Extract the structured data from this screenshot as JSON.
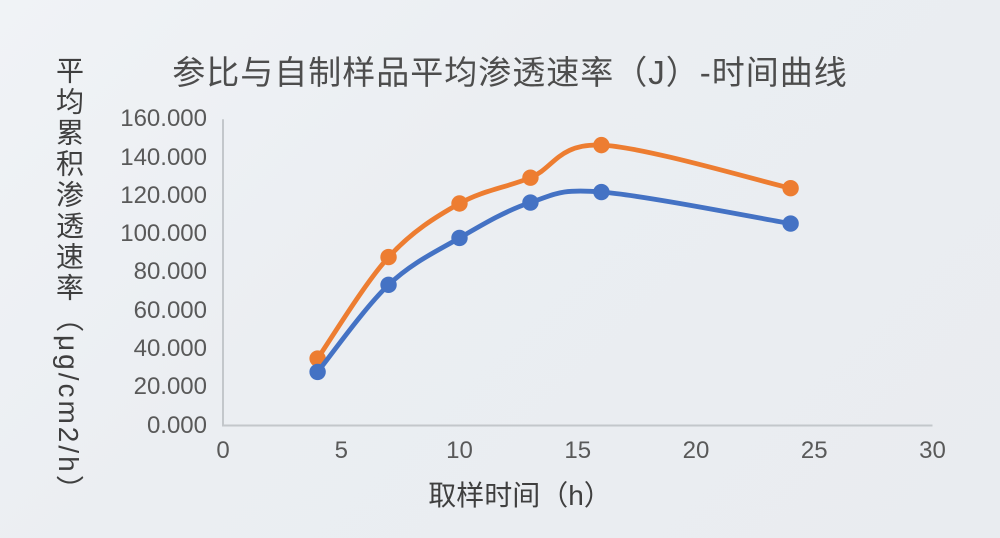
{
  "chart_data": {
    "type": "line",
    "title": "参比与自制样品平均渗透速率（J）-时间曲线",
    "xlabel": "取样时间（h）",
    "ylabel": "平均累积渗透速率（μg/cm2/h）",
    "x": [
      4,
      7,
      10,
      13,
      16,
      24
    ],
    "series": [
      {
        "name": "orange-series",
        "color": "#ED7D31",
        "values": [
          35.0,
          88.0,
          116.0,
          129.5,
          146.5,
          124.0
        ]
      },
      {
        "name": "blue-series",
        "color": "#4472C4",
        "values": [
          28.0,
          73.5,
          98.0,
          116.5,
          122.0,
          105.5
        ]
      }
    ],
    "xlim": [
      0,
      30
    ],
    "ylim": [
      0,
      160
    ],
    "xtick_labels": [
      "0",
      "5",
      "10",
      "15",
      "20",
      "25",
      "30"
    ],
    "xtick_values": [
      0,
      5,
      10,
      15,
      20,
      25,
      30
    ],
    "ytick_labels": [
      "0.000",
      "20.000",
      "40.000",
      "60.000",
      "80.000",
      "100.000",
      "120.000",
      "140.000",
      "160.000"
    ],
    "ytick_values": [
      0,
      20,
      40,
      60,
      80,
      100,
      120,
      140,
      160
    ],
    "grid": false,
    "legend": "none",
    "smooth_lines": true,
    "colors": {
      "background": "#EBEEF2",
      "axis_line": "#C3C7CB",
      "tick_text": "#595959",
      "title_text": "#4d4d4d"
    }
  }
}
